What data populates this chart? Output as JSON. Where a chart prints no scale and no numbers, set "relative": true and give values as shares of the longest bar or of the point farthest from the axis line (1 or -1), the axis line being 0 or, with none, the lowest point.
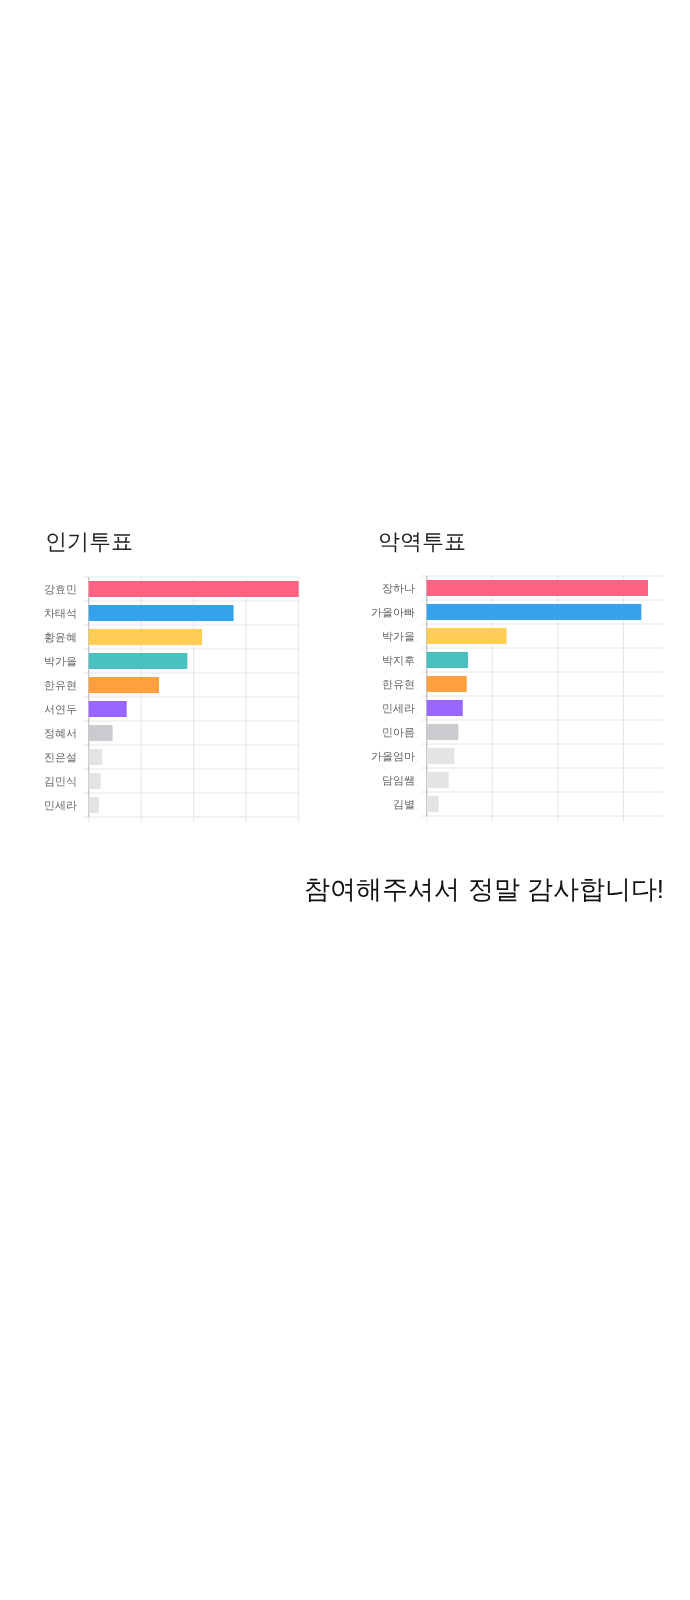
{
  "chart_data": [
    {
      "type": "bar",
      "orientation": "horizontal",
      "relative": true,
      "title": "인기투표",
      "categories": [
        "강효민",
        "차태석",
        "황윤혜",
        "박가을",
        "한유현",
        "서연두",
        "정혜서",
        "진은설",
        "김민식",
        "민세라"
      ],
      "values": [
        1,
        0.69,
        0.54,
        0.47,
        0.335,
        0.181,
        0.114,
        0.065,
        0.057,
        0.049
      ],
      "colors": [
        "#ff6384",
        "#36a2eb",
        "#ffcd56",
        "#4bc0c0",
        "#ff9f40",
        "#9966ff",
        "#c9cbcf",
        "#e4e4e4",
        "#e4e4e4",
        "#e4e4e4"
      ],
      "grid": true
    },
    {
      "type": "bar",
      "orientation": "horizontal",
      "relative": true,
      "title": "악역투표",
      "categories": [
        "장하나",
        "가을아빠",
        "박가을",
        "박지후",
        "한유현",
        "민세라",
        "민아름",
        "가을엄마",
        "담임쌤",
        "김별"
      ],
      "values": [
        1,
        0.97,
        0.361,
        0.187,
        0.181,
        0.163,
        0.143,
        0.125,
        0.099,
        0.054
      ],
      "colors": [
        "#ff6384",
        "#36a2eb",
        "#ffcd56",
        "#4bc0c0",
        "#ff9f40",
        "#9966ff",
        "#c9cbcf",
        "#e4e4e4",
        "#e4e4e4",
        "#e4e4e4"
      ],
      "grid": true,
      "annotations": [
        "참여해주셔서 정말 감사합니다!"
      ]
    }
  ]
}
